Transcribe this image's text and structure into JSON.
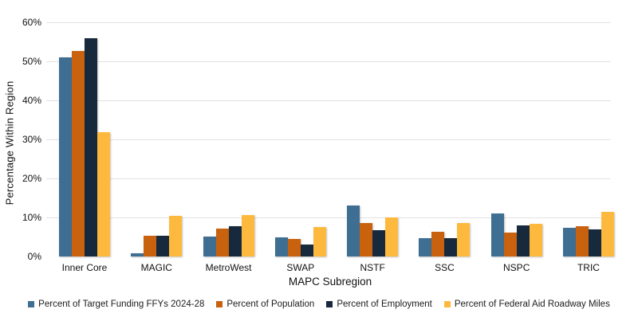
{
  "chart_data": {
    "type": "bar",
    "title": "",
    "xlabel": "MAPC Subregion",
    "ylabel": "Percentage Within Region",
    "ylim": [
      0,
      60
    ],
    "ytick_step": 10,
    "ytick_labels": [
      "0%",
      "10%",
      "20%",
      "30%",
      "40%",
      "50%",
      "60%"
    ],
    "grid": true,
    "legend_position": "bottom",
    "categories": [
      "Inner Core",
      "MAGIC",
      "MetroWest",
      "SWAP",
      "NSTF",
      "SSC",
      "NSPC",
      "TRIC"
    ],
    "series": [
      {
        "name": "Percent of Target Funding FFYs 2024-28",
        "color": "#3E6E92",
        "values": [
          51.1,
          0.9,
          5.1,
          4.9,
          13.1,
          4.6,
          11.1,
          7.3
        ]
      },
      {
        "name": "Percent of Population",
        "color": "#C8620F",
        "values": [
          52.7,
          5.3,
          7.2,
          4.4,
          8.5,
          6.4,
          6.2,
          7.8
        ]
      },
      {
        "name": "Percent of Employment",
        "color": "#17293C",
        "values": [
          55.9,
          5.4,
          7.8,
          3.0,
          6.8,
          4.6,
          8.0,
          6.9
        ]
      },
      {
        "name": "Percent of Federal Aid Roadway Miles",
        "color": "#FDB93E",
        "values": [
          31.8,
          10.4,
          10.6,
          7.5,
          10.0,
          8.5,
          8.3,
          11.4
        ]
      }
    ],
    "colors": {
      "gridline": "#e2e2e2",
      "background": "#ffffff",
      "text": "#111111"
    }
  }
}
